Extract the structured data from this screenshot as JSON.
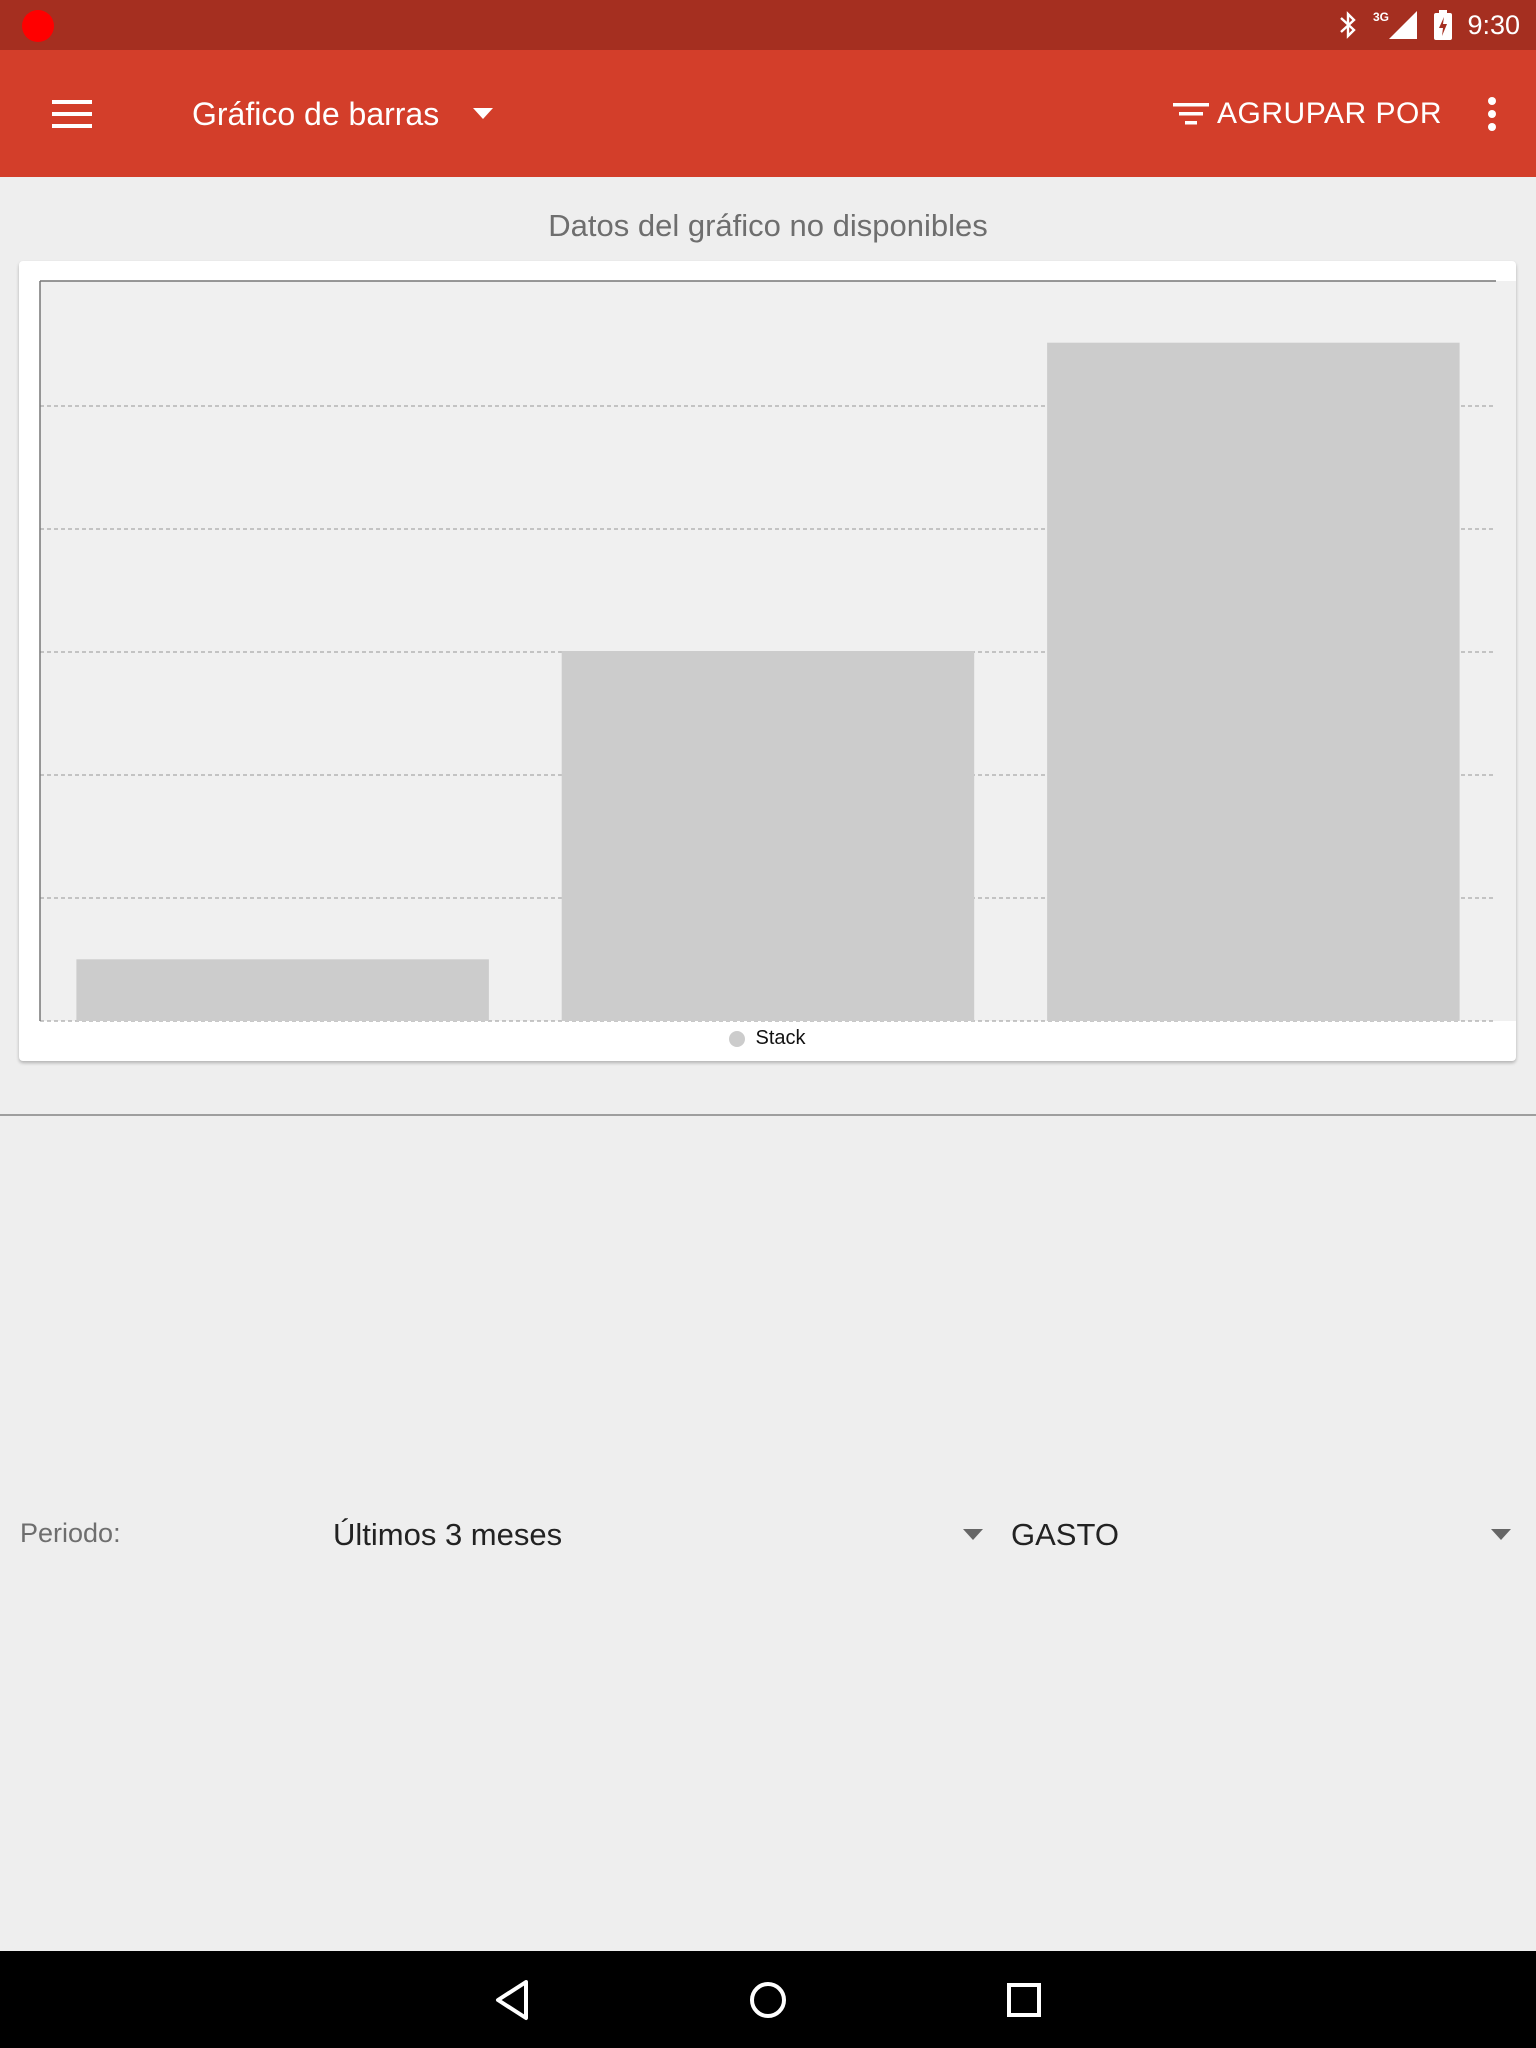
{
  "status_bar": {
    "time": "9:30",
    "network": "3G",
    "colors": {
      "background": "#a52f20",
      "record_dot": "#ff0000"
    }
  },
  "app_bar": {
    "title": "Gráfico de barras",
    "group_by_label": "AGRUPAR POR",
    "colors": {
      "background": "#d33e2a"
    }
  },
  "chart_caption": "Datos del gráfico no disponibles",
  "chart_data": {
    "type": "bar",
    "categories": [
      "",
      "",
      ""
    ],
    "series": [
      {
        "name": "Stack",
        "values": [
          1,
          6,
          11
        ]
      }
    ],
    "ylim": [
      0,
      12
    ],
    "grid": true,
    "legend_placement": "bottom-center",
    "colors": {
      "bar": "#cccccc",
      "plot_background": "#f0f0f0"
    }
  },
  "legend": {
    "label": "Stack"
  },
  "filters": {
    "period_label": "Periodo:",
    "period_value": "Últimos 3 meses",
    "type_value": "GASTO"
  }
}
